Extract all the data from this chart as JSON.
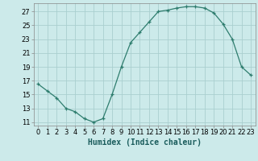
{
  "x": [
    0,
    1,
    2,
    3,
    4,
    5,
    6,
    7,
    8,
    9,
    10,
    11,
    12,
    13,
    14,
    15,
    16,
    17,
    18,
    19,
    20,
    21,
    22,
    23
  ],
  "y": [
    16.5,
    15.5,
    14.5,
    13,
    12.5,
    11.5,
    11,
    11.5,
    15,
    19,
    22.5,
    24,
    25.5,
    27,
    27.2,
    27.5,
    27.7,
    27.7,
    27.5,
    26.8,
    25.2,
    23,
    19,
    17.8
  ],
  "line_color": "#2e7d6e",
  "marker": "+",
  "marker_color": "#2e7d6e",
  "bg_color": "#cceaea",
  "grid_color": "#aacfcf",
  "xlabel": "Humidex (Indice chaleur)",
  "ylabel_ticks": [
    11,
    13,
    15,
    17,
    19,
    21,
    23,
    25,
    27
  ],
  "xlim": [
    -0.5,
    23.5
  ],
  "ylim": [
    10.5,
    28.2
  ],
  "xticks": [
    0,
    1,
    2,
    3,
    4,
    5,
    6,
    7,
    8,
    9,
    10,
    11,
    12,
    13,
    14,
    15,
    16,
    17,
    18,
    19,
    20,
    21,
    22,
    23
  ],
  "label_fontsize": 7,
  "tick_fontsize": 6
}
